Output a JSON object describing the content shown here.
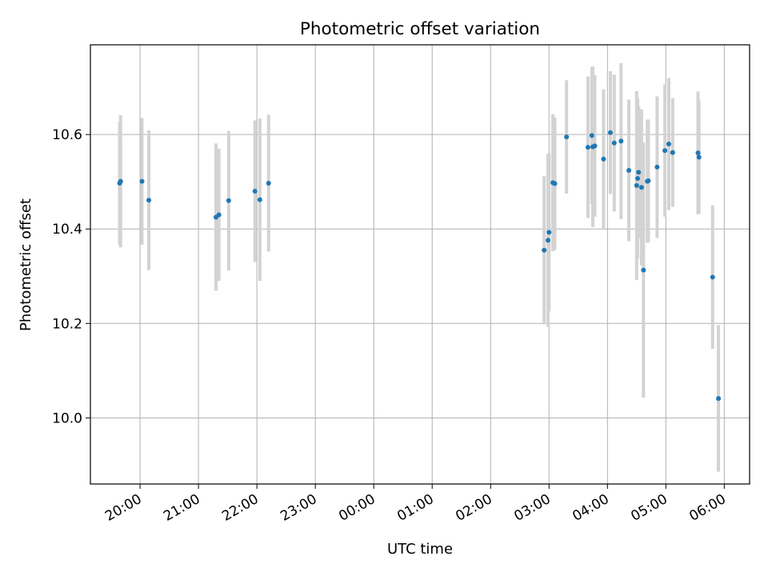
{
  "chart_data": {
    "type": "scatter",
    "title": "Photometric offset variation",
    "xlabel": "UTC time",
    "ylabel": "Photometric offset",
    "x_axis": "time",
    "xlim": [
      "19:09",
      "30:26"
    ],
    "ylim": [
      9.86,
      10.79
    ],
    "x_ticks": [
      "20:00",
      "21:00",
      "22:00",
      "23:00",
      "00:00",
      "01:00",
      "02:00",
      "03:00",
      "04:00",
      "05:00",
      "06:00"
    ],
    "y_ticks": [
      10.0,
      10.2,
      10.4,
      10.6
    ],
    "y_tick_labels": [
      "10.0",
      "10.2",
      "10.4",
      "10.6"
    ],
    "grid": true,
    "point_color": "#1f77b4",
    "errorbar_color": "#d3d3d3",
    "points": [
      {
        "time": "19:39",
        "y": 10.497,
        "err": 0.13
      },
      {
        "time": "19:40",
        "y": 10.501,
        "err": 0.14
      },
      {
        "time": "20:02",
        "y": 10.501,
        "err": 0.134
      },
      {
        "time": "20:09",
        "y": 10.461,
        "err": 0.148
      },
      {
        "time": "21:18",
        "y": 10.425,
        "err": 0.156
      },
      {
        "time": "21:21",
        "y": 10.43,
        "err": 0.14
      },
      {
        "time": "21:31",
        "y": 10.46,
        "err": 0.148
      },
      {
        "time": "21:58",
        "y": 10.48,
        "err": 0.15
      },
      {
        "time": "22:03",
        "y": 10.462,
        "err": 0.172
      },
      {
        "time": "22:12",
        "y": 10.497,
        "err": 0.145
      },
      {
        "time": "26:55",
        "y": 10.355,
        "err": 0.157
      },
      {
        "time": "26:59",
        "y": 10.376,
        "err": 0.183
      },
      {
        "time": "27:00",
        "y": 10.393,
        "err": 0.167
      },
      {
        "time": "27:04",
        "y": 10.498,
        "err": 0.145
      },
      {
        "time": "27:06",
        "y": 10.496,
        "err": 0.14
      },
      {
        "time": "27:18",
        "y": 10.595,
        "err": 0.12
      },
      {
        "time": "27:40",
        "y": 10.573,
        "err": 0.15
      },
      {
        "time": "27:44",
        "y": 10.598,
        "err": 0.145
      },
      {
        "time": "27:45",
        "y": 10.574,
        "err": 0.17
      },
      {
        "time": "27:47",
        "y": 10.576,
        "err": 0.15
      },
      {
        "time": "27:56",
        "y": 10.548,
        "err": 0.148
      },
      {
        "time": "28:03",
        "y": 10.604,
        "err": 0.13
      },
      {
        "time": "28:07",
        "y": 10.582,
        "err": 0.145
      },
      {
        "time": "28:14",
        "y": 10.586,
        "err": 0.165
      },
      {
        "time": "28:22",
        "y": 10.524,
        "err": 0.15
      },
      {
        "time": "28:30",
        "y": 10.492,
        "err": 0.2
      },
      {
        "time": "28:31",
        "y": 10.507,
        "err": 0.17
      },
      {
        "time": "28:32",
        "y": 10.52,
        "err": 0.14
      },
      {
        "time": "28:35",
        "y": 10.488,
        "err": 0.165
      },
      {
        "time": "28:37",
        "y": 10.313,
        "err": 0.27
      },
      {
        "time": "28:41",
        "y": 10.501,
        "err": 0.13
      },
      {
        "time": "28:42",
        "y": 10.502,
        "err": 0.13
      },
      {
        "time": "28:51",
        "y": 10.531,
        "err": 0.15
      },
      {
        "time": "28:59",
        "y": 10.566,
        "err": 0.14
      },
      {
        "time": "29:03",
        "y": 10.58,
        "err": 0.14
      },
      {
        "time": "29:07",
        "y": 10.562,
        "err": 0.115
      },
      {
        "time": "29:33",
        "y": 10.561,
        "err": 0.13
      },
      {
        "time": "29:34",
        "y": 10.552,
        "err": 0.12
      },
      {
        "time": "29:48",
        "y": 10.298,
        "err": 0.152
      },
      {
        "time": "29:54",
        "y": 10.041,
        "err": 0.155
      }
    ]
  }
}
